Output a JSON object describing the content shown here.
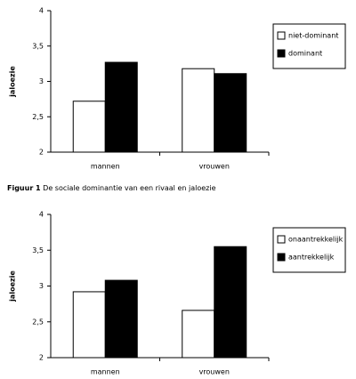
{
  "chart_data": [
    {
      "type": "bar",
      "y_label": "jaloezie",
      "categories": [
        "mannen",
        "vrouwen"
      ],
      "series": [
        {
          "name": "niet-dominant",
          "color": "#ffffff",
          "values": [
            2.72,
            3.18
          ]
        },
        {
          "name": "dominant",
          "color": "#000000",
          "values": [
            3.27,
            3.11
          ]
        }
      ],
      "ylim": [
        2,
        4
      ],
      "yticks": [
        2,
        {
          "value": 2.5,
          "label": "2,5"
        },
        3,
        {
          "value": 3.5,
          "label": "3,5"
        },
        4
      ],
      "legend": "upper right"
    },
    {
      "type": "bar",
      "y_label": "jaloezie",
      "categories": [
        "mannen",
        "vrouwen"
      ],
      "series": [
        {
          "name": "onaantrekkelijk",
          "color": "#ffffff",
          "values": [
            2.92,
            2.66
          ]
        },
        {
          "name": "aantrekkelijk",
          "color": "#000000",
          "values": [
            3.08,
            3.55
          ]
        }
      ],
      "ylim": [
        2,
        4
      ],
      "yticks": [
        2,
        {
          "value": 2.5,
          "label": "2,5"
        },
        3,
        {
          "value": 3.5,
          "label": "3,5"
        },
        4
      ],
      "legend": "upper right"
    }
  ],
  "caption": {
    "label": "Figuur 1",
    "text": "De sociale dominantie van een rivaal en jaloezie"
  }
}
